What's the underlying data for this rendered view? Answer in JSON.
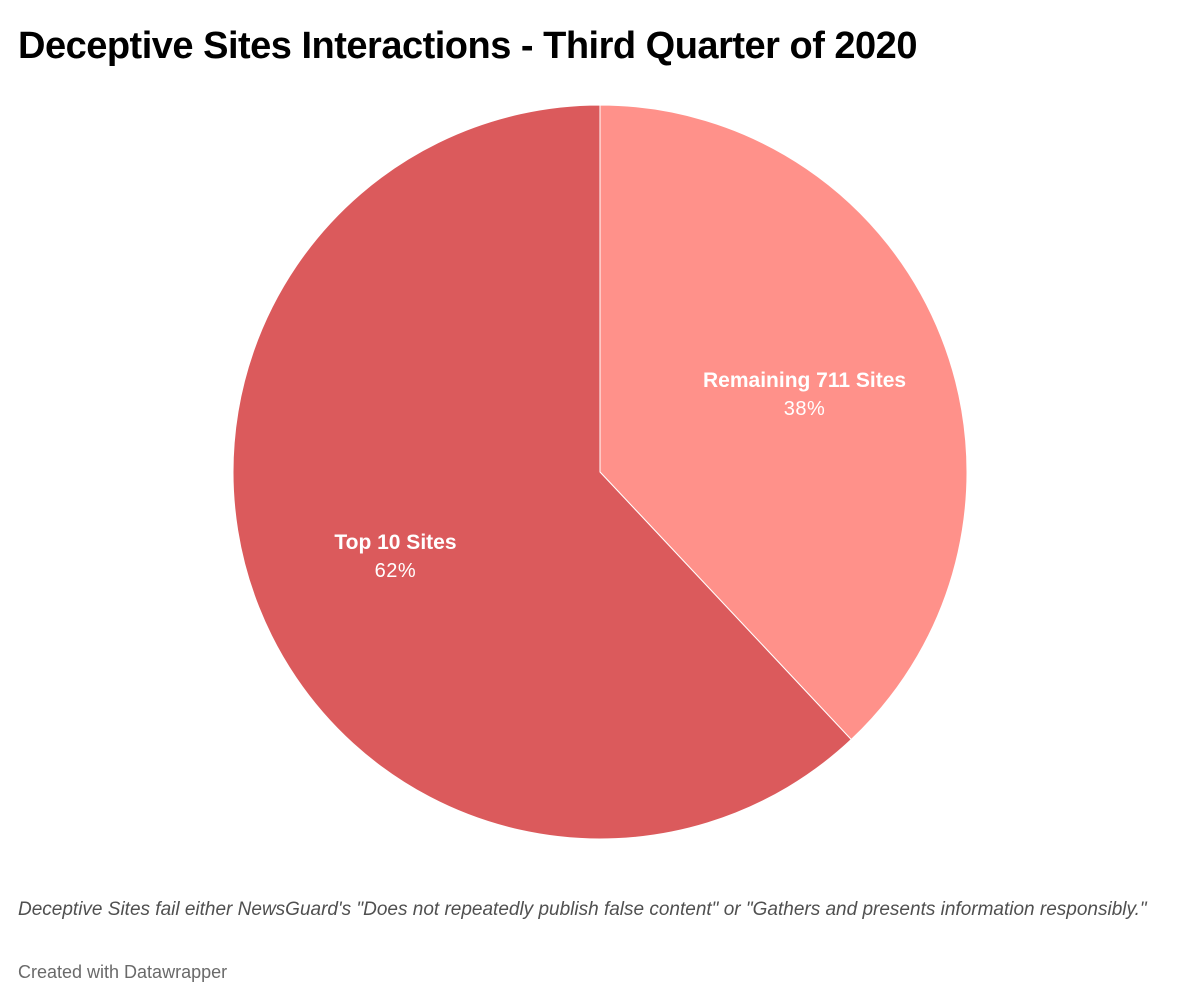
{
  "chart_data": {
    "type": "pie",
    "title": "Deceptive Sites Interactions - Third Quarter of 2020",
    "slices": [
      {
        "label": "Remaining 711 Sites",
        "value": 38,
        "value_label": "38%",
        "color": "#ff918a"
      },
      {
        "label": "Top 10 Sites",
        "value": 62,
        "value_label": "62%",
        "color": "#db5a5c"
      }
    ],
    "start_angle_deg": 0,
    "direction": "clockwise",
    "legend": "none",
    "slice_border_color": "#ffffff"
  },
  "notes": "Deceptive Sites fail either NewsGuard's \"Does not repeatedly publish false content\" or \"Gathers and presents information responsibly.\"",
  "credit": "Created with Datawrapper"
}
